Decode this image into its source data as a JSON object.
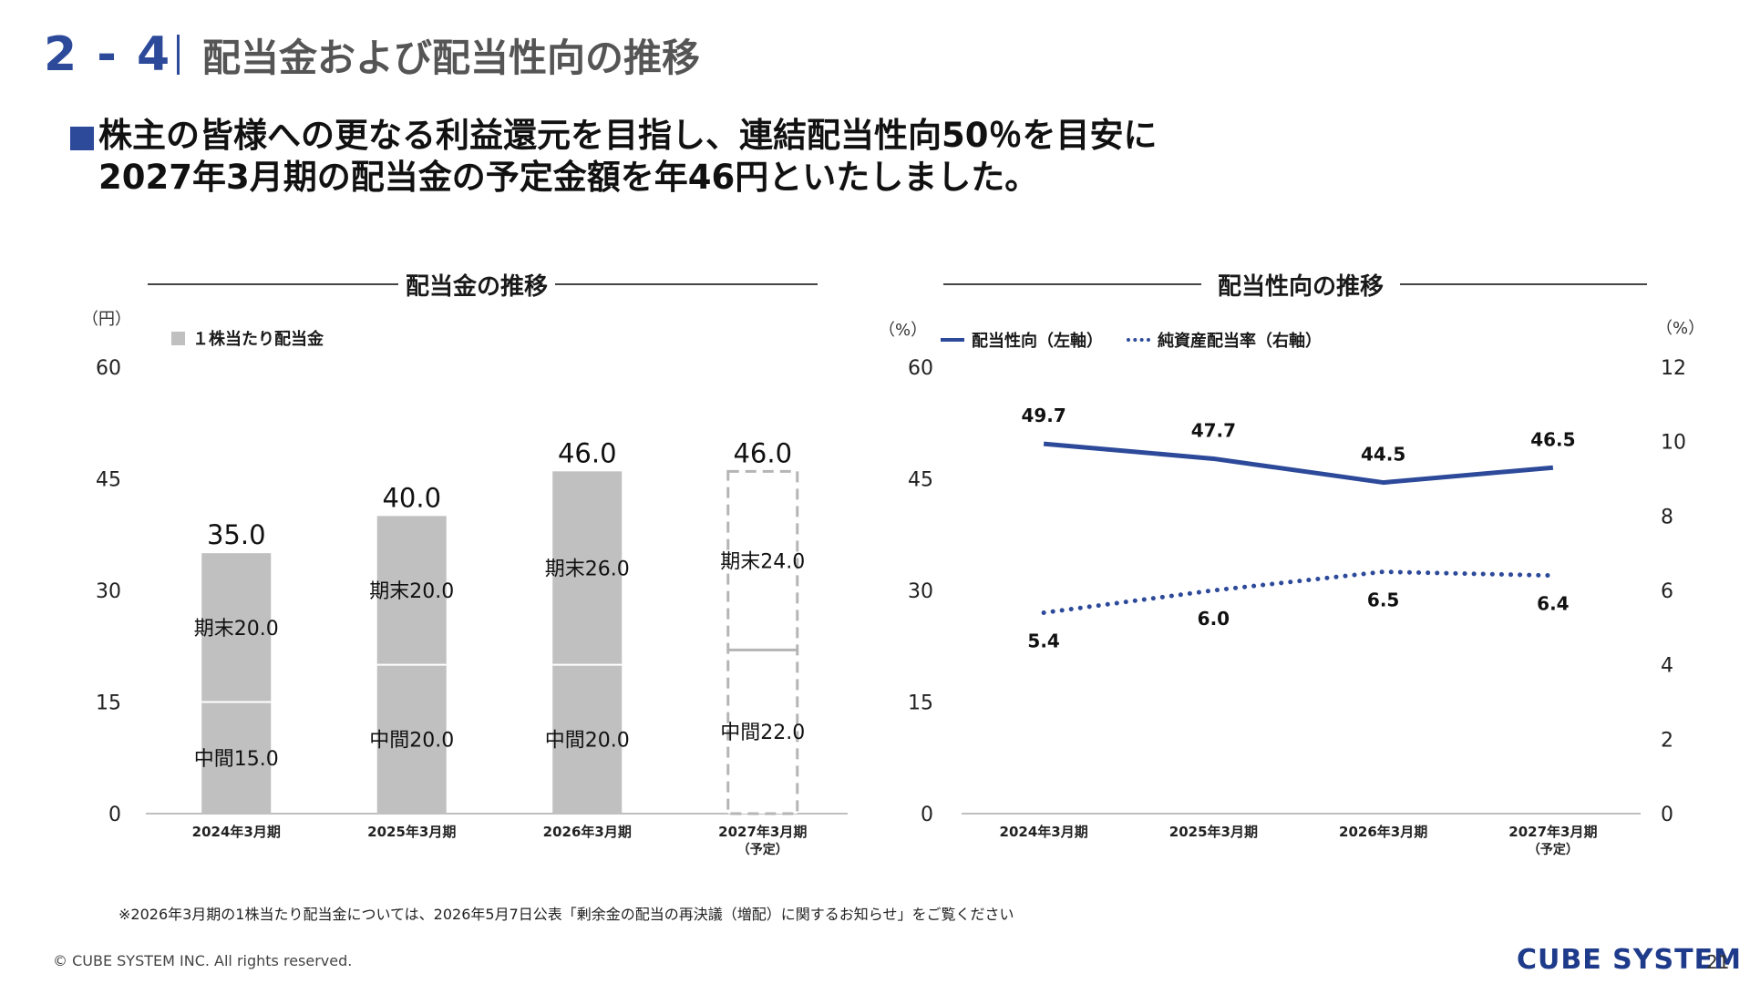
{
  "header": {
    "section_number": "2 - 4",
    "title": "配当金および配当性向の推移"
  },
  "headline": {
    "line1": "株主の皆様への更なる利益還元を目指し、連結配当性向50％を目安に",
    "line2": "2027年3月期の配当金の予定金額を年46円といたしました。"
  },
  "dividend_chart": {
    "section_title": "配当金の推移",
    "unit": "（円）",
    "legend": "１株当たり配当金"
  },
  "payout_chart": {
    "section_title": "配当性向の推移",
    "unit_left": "（%）",
    "unit_right": "（%）",
    "legend_solid": "配当性向（左軸）",
    "legend_dotted": "純資産配当率（右軸）"
  },
  "chart_data": [
    {
      "type": "bar",
      "stacked": true,
      "categories": [
        "2024年3月期",
        "2025年3月期",
        "2026年3月期",
        "2027年3月期"
      ],
      "category_notes": [
        "",
        "",
        "",
        "（予定）"
      ],
      "series": [
        {
          "name": "中間",
          "values": [
            15.0,
            20.0,
            20.0,
            22.0
          ]
        },
        {
          "name": "期末",
          "values": [
            20.0,
            20.0,
            26.0,
            24.0
          ]
        }
      ],
      "totals": [
        35.0,
        40.0,
        46.0,
        46.0
      ],
      "segment_labels": {
        "interim": [
          "中間15.0",
          "中間20.0",
          "中間20.0",
          "中間22.0"
        ],
        "year_end": [
          "期末20.0",
          "期末20.0",
          "期末26.0",
          "期末24.0"
        ]
      },
      "total_labels": [
        "35.0",
        "40.0",
        "46.0",
        "46.0"
      ],
      "forecast_index": 3,
      "ylim": [
        0,
        60
      ],
      "yticks": [
        "0",
        "15",
        "30",
        "45",
        "60"
      ],
      "bar_color": "#c0c0c0",
      "forecast_border_color": "#b5b5b5"
    },
    {
      "type": "line",
      "categories": [
        "2024年3月期",
        "2025年3月期",
        "2026年3月期",
        "2027年3月期"
      ],
      "category_notes": [
        "",
        "",
        "",
        "（予定）"
      ],
      "series": [
        {
          "name": "配当性向（左軸）",
          "axis": "left",
          "style": "solid",
          "values": [
            49.7,
            47.7,
            44.5,
            46.5
          ],
          "labels": [
            "49.7",
            "47.7",
            "44.5",
            "46.5"
          ]
        },
        {
          "name": "純資産配当率（右軸）",
          "axis": "right",
          "style": "dotted",
          "values": [
            5.4,
            6.0,
            6.5,
            6.4
          ],
          "labels": [
            "5.4",
            "6.0",
            "6.5",
            "6.4"
          ]
        }
      ],
      "ylim_left": [
        0,
        60
      ],
      "yticks_left": [
        "0",
        "15",
        "30",
        "45",
        "60"
      ],
      "ylim_right": [
        0,
        12
      ],
      "yticks_right": [
        "0",
        "2",
        "4",
        "6",
        "8",
        "10",
        "12"
      ],
      "line_color": "#2d4a9a"
    }
  ],
  "footnote": "※2026年3月期の1株当たり配当金については、2026年5月7日公表「剰余金の配当の再決議（増配）に関するお知らせ」をご覧ください",
  "footer": {
    "copyright": "© CUBE SYSTEM INC. All rights reserved.",
    "logo_text": "CUBE SYSTEM",
    "page_number": "21"
  },
  "colors": {
    "accent": "#2d4a9a",
    "bar": "#c0c0c0"
  }
}
